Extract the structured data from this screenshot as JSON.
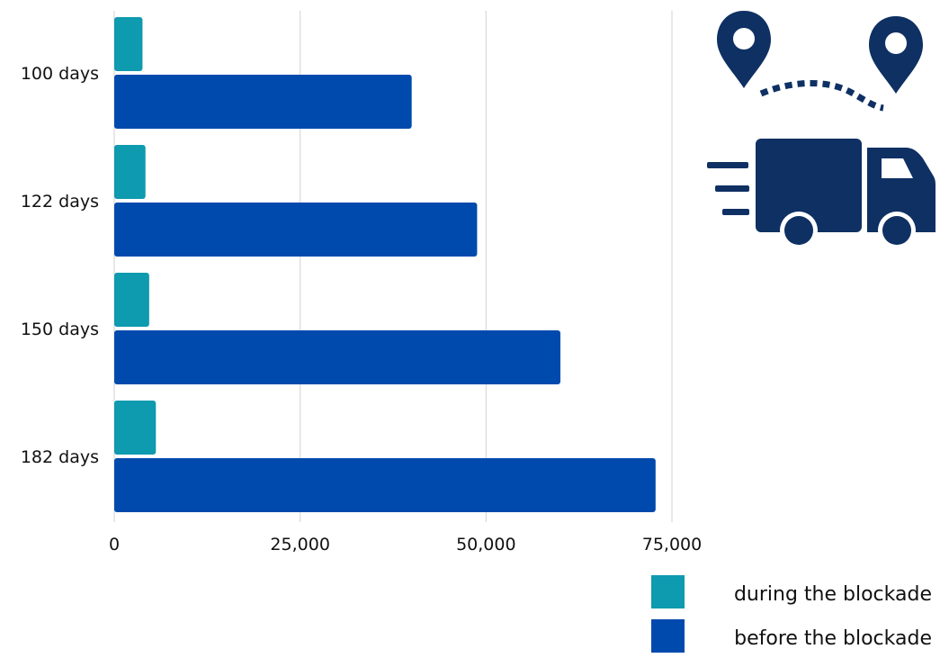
{
  "chart_data": {
    "type": "bar",
    "orientation": "horizontal",
    "categories": [
      "100 days",
      "122 days",
      "150 days",
      "182 days"
    ],
    "series": [
      {
        "name": "during the blockade",
        "color": "#0E9AAF",
        "values": [
          3800,
          4200,
          4700,
          5600
        ]
      },
      {
        "name": "before the blockade",
        "color": "#004AAD",
        "values": [
          40000,
          48800,
          60000,
          72800
        ]
      }
    ],
    "x_ticks": [
      0,
      25000,
      50000,
      75000
    ],
    "x_tick_labels": [
      "0",
      "25,000",
      "50,000",
      "75,000"
    ],
    "xlim": [
      0,
      75000
    ],
    "grid": "vertical",
    "legend": "bottom-right",
    "title": "",
    "xlabel": "",
    "ylabel": ""
  },
  "illustration": {
    "icons": [
      "location-pin-icon",
      "location-pin-icon",
      "dotted-route-icon",
      "delivery-truck-icon"
    ],
    "icon_color": "#0F3063"
  }
}
